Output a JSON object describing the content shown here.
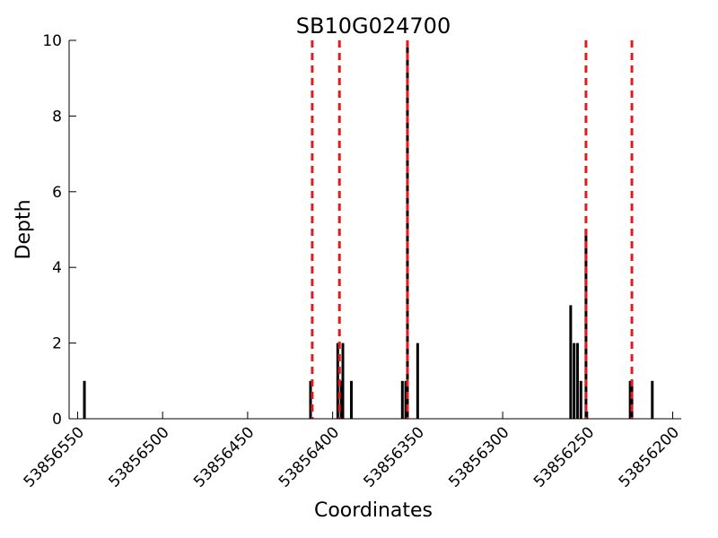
{
  "chart_data": {
    "type": "bar",
    "title": "SB10G024700",
    "xlabel": "Coordinates",
    "ylabel": "Depth",
    "x_reversed": true,
    "xlim": [
      53856555,
      53856195
    ],
    "ylim": [
      0,
      10
    ],
    "x_ticks": [
      53856550,
      53856500,
      53856450,
      53856400,
      53856350,
      53856300,
      53856250,
      53856200
    ],
    "y_ticks": [
      0,
      2,
      4,
      6,
      8,
      10
    ],
    "grid": false,
    "bars": [
      {
        "x": 53856546,
        "y": 1
      },
      {
        "x": 53856413,
        "y": 1
      },
      {
        "x": 53856397,
        "y": 2
      },
      {
        "x": 53856395,
        "y": 1
      },
      {
        "x": 53856394,
        "y": 2
      },
      {
        "x": 53856389,
        "y": 1
      },
      {
        "x": 53856359,
        "y": 1
      },
      {
        "x": 53856357,
        "y": 1
      },
      {
        "x": 53856356,
        "y": 10
      },
      {
        "x": 53856350,
        "y": 2
      },
      {
        "x": 53856260,
        "y": 3
      },
      {
        "x": 53856258,
        "y": 2
      },
      {
        "x": 53856256,
        "y": 2
      },
      {
        "x": 53856254,
        "y": 1
      },
      {
        "x": 53856251,
        "y": 5
      },
      {
        "x": 53856225,
        "y": 1
      },
      {
        "x": 53856224,
        "y": 1
      },
      {
        "x": 53856212,
        "y": 1
      }
    ],
    "vlines": [
      53856412,
      53856396,
      53856356,
      53856251,
      53856224
    ],
    "bar_color": "#000000",
    "vline_color": "#e41a1c"
  }
}
